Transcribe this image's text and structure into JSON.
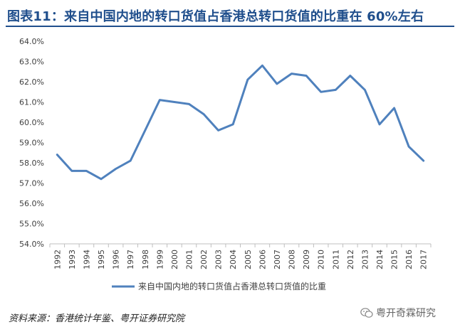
{
  "title": "图表11：来自中国内地的转口货值占香港总转口货值的比重在 60%左右",
  "source": "资料来源：香港统计年鉴、粤开证券研究院",
  "watermark": {
    "text": "粤开奇霖研究",
    "icon": "wechat-icon"
  },
  "colors": {
    "title": "#1f4e8c",
    "line": "#4f81bd",
    "axis": "#bfbfbf",
    "text": "#404040"
  },
  "chart_data": {
    "type": "line",
    "title": "",
    "xlabel": "",
    "ylabel": "",
    "ylim": [
      54.0,
      64.0
    ],
    "yticks": [
      "54.0%",
      "55.0%",
      "56.0%",
      "57.0%",
      "58.0%",
      "59.0%",
      "60.0%",
      "61.0%",
      "62.0%",
      "63.0%",
      "64.0%"
    ],
    "grid": false,
    "legend": "bottom",
    "categories": [
      "1992",
      "1993",
      "1994",
      "1995",
      "1996",
      "1997",
      "1998",
      "1999",
      "2000",
      "2001",
      "2002",
      "2003",
      "2004",
      "2005",
      "2006",
      "2007",
      "2008",
      "2009",
      "2010",
      "2011",
      "2012",
      "2013",
      "2014",
      "2015",
      "2016",
      "2017"
    ],
    "series": [
      {
        "name": "来自中国内地的转口货值占香港总转口货值的比重",
        "values": [
          58.4,
          57.6,
          57.6,
          57.2,
          57.7,
          58.1,
          59.6,
          61.1,
          61.0,
          60.9,
          60.4,
          59.6,
          59.9,
          62.1,
          62.8,
          61.9,
          62.4,
          62.3,
          61.5,
          61.6,
          62.3,
          61.6,
          59.9,
          60.7,
          58.8,
          58.1
        ]
      }
    ]
  }
}
